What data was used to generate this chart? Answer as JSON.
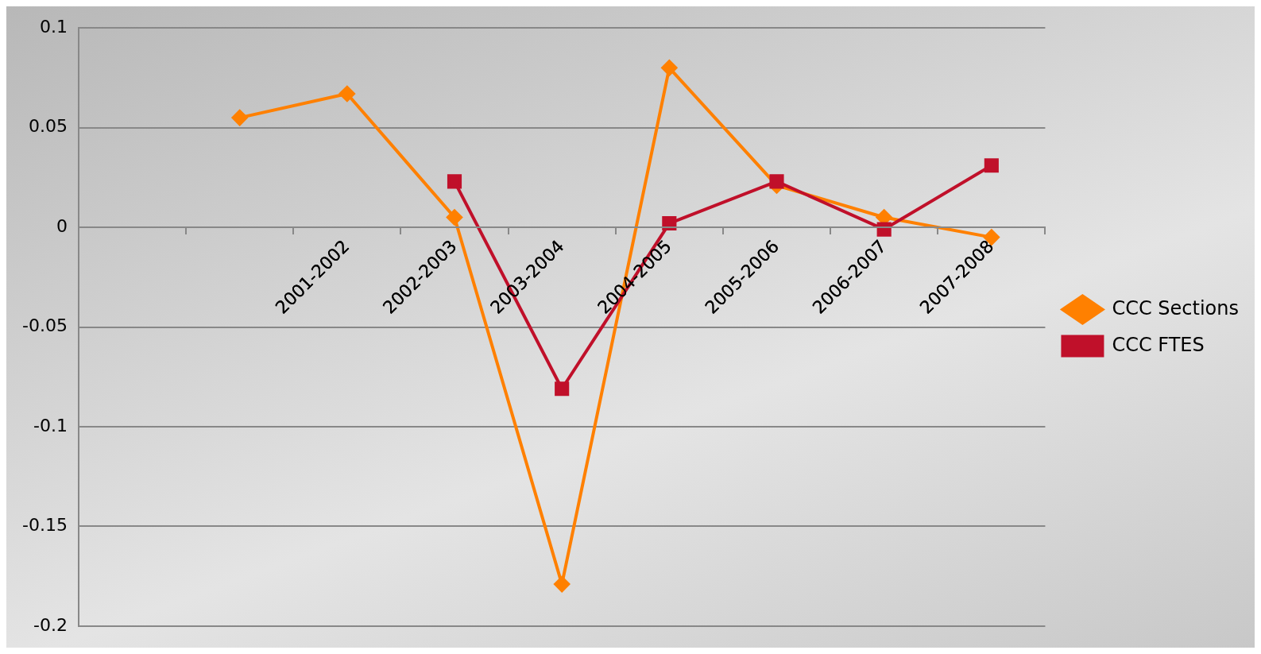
{
  "chart_data": {
    "type": "line",
    "categories": [
      null,
      null,
      "2001-2002",
      "2002-2003",
      "2003-2004",
      "2004-2005",
      "2005-2006",
      "2006-2007",
      "2007-2008"
    ],
    "series": [
      {
        "name": "CCC Sections",
        "color": "#ff8000",
        "marker": "diamond",
        "values": [
          null,
          0.055,
          0.067,
          0.005,
          -0.179,
          0.08,
          0.021,
          0.005,
          -0.005
        ]
      },
      {
        "name": "CCC FTES",
        "color": "#c0102a",
        "marker": "square",
        "values": [
          null,
          null,
          null,
          0.023,
          -0.081,
          0.002,
          0.023,
          -0.001,
          0.031
        ]
      }
    ],
    "ylim": [
      -0.2,
      0.1
    ],
    "yticks": [
      -0.2,
      -0.15,
      -0.1,
      -0.05,
      0,
      0.05,
      0.1
    ],
    "grid": "y",
    "legend": "right",
    "line_style": "solid"
  }
}
